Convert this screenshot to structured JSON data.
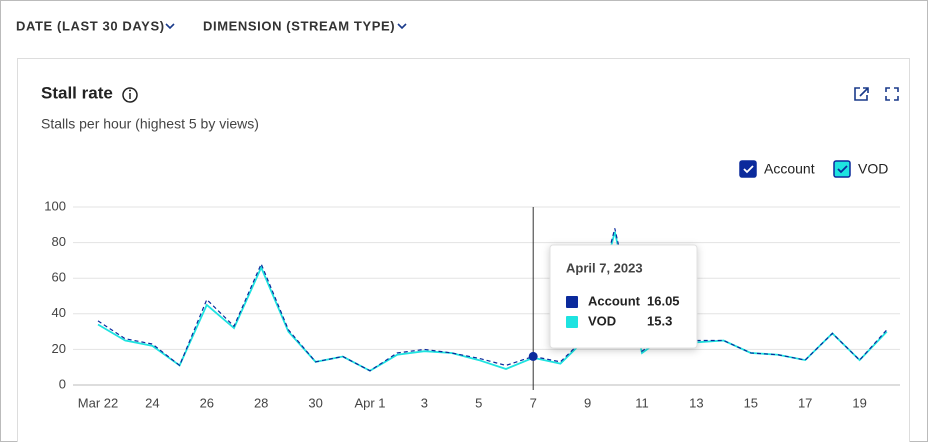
{
  "filters": [
    "DATE (LAST 30 DAYS)",
    "DIMENSION (STREAM TYPE)"
  ],
  "chart_data": {
    "type": "line",
    "title": "Stall rate",
    "subtitle": "Stalls per hour (highest 5 by views)",
    "categories": [
      "Mar 22",
      null,
      "24",
      null,
      "26",
      null,
      "28",
      null,
      "30",
      null,
      "Apr 1",
      null,
      "3",
      null,
      "5",
      null,
      "7",
      null,
      "9",
      null,
      "11",
      null,
      "13",
      null,
      "15",
      null,
      "17",
      null,
      "19",
      null
    ],
    "series": [
      {
        "name": "Account",
        "color": "#0b2a9c",
        "values": [
          36,
          26,
          23,
          11,
          48,
          33,
          68,
          31,
          13,
          16,
          8,
          18,
          20,
          18,
          15,
          11,
          16.05,
          13,
          28,
          88,
          19,
          30,
          25,
          25,
          18,
          17,
          14,
          29,
          14,
          31
        ]
      },
      {
        "name": "VOD",
        "color": "#1ee3e0",
        "values": [
          34,
          25,
          22,
          11,
          45,
          32,
          66,
          30,
          13,
          16,
          8,
          17,
          19,
          18,
          14,
          9,
          15.3,
          12,
          27,
          86,
          18,
          29,
          24,
          25,
          18,
          17,
          14,
          29,
          14,
          30
        ]
      }
    ],
    "ylim": [
      0,
      100
    ],
    "yticks": [
      0,
      20,
      40,
      60,
      80,
      100
    ],
    "grid": true,
    "tooltip": {
      "title": "April 7, 2023"
    }
  }
}
